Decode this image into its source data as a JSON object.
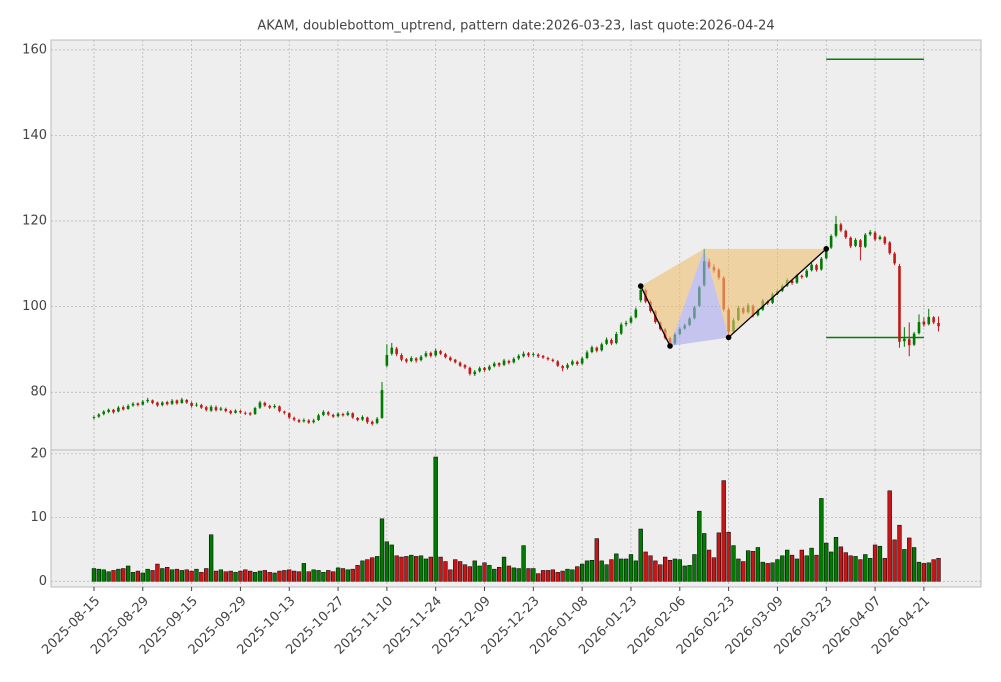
{
  "chart_data": {
    "type": "candlestick",
    "title": "AKAM, doublebottom_uptrend, pattern date:2026-03-23, last quote:2026-04-24",
    "dates": [
      "2025-08-15",
      "2025-08-18",
      "2025-08-19",
      "2025-08-20",
      "2025-08-21",
      "2025-08-22",
      "2025-08-25",
      "2025-08-26",
      "2025-08-27",
      "2025-08-28",
      "2025-08-29",
      "2025-09-02",
      "2025-09-03",
      "2025-09-04",
      "2025-09-05",
      "2025-09-08",
      "2025-09-09",
      "2025-09-10",
      "2025-09-11",
      "2025-09-12",
      "2025-09-15",
      "2025-09-16",
      "2025-09-17",
      "2025-09-18",
      "2025-09-19",
      "2025-09-22",
      "2025-09-23",
      "2025-09-24",
      "2025-09-25",
      "2025-09-26",
      "2025-09-29",
      "2025-09-30",
      "2025-10-01",
      "2025-10-02",
      "2025-10-03",
      "2025-10-06",
      "2025-10-07",
      "2025-10-08",
      "2025-10-09",
      "2025-10-10",
      "2025-10-13",
      "2025-10-14",
      "2025-10-15",
      "2025-10-16",
      "2025-10-17",
      "2025-10-20",
      "2025-10-21",
      "2025-10-22",
      "2025-10-23",
      "2025-10-24",
      "2025-10-27",
      "2025-10-28",
      "2025-10-29",
      "2025-10-30",
      "2025-10-31",
      "2025-11-03",
      "2025-11-04",
      "2025-11-05",
      "2025-11-06",
      "2025-11-07",
      "2025-11-10",
      "2025-11-11",
      "2025-11-12",
      "2025-11-13",
      "2025-11-14",
      "2025-11-17",
      "2025-11-18",
      "2025-11-19",
      "2025-11-20",
      "2025-11-21",
      "2025-11-24",
      "2025-11-25",
      "2025-11-26",
      "2025-11-28",
      "2025-12-01",
      "2025-12-02",
      "2025-12-03",
      "2025-12-04",
      "2025-12-05",
      "2025-12-08",
      "2025-12-09",
      "2025-12-10",
      "2025-12-11",
      "2025-12-12",
      "2025-12-15",
      "2025-12-16",
      "2025-12-17",
      "2025-12-18",
      "2025-12-19",
      "2025-12-22",
      "2025-12-23",
      "2025-12-24",
      "2025-12-26",
      "2025-12-29",
      "2025-12-30",
      "2025-12-31",
      "2026-01-02",
      "2026-01-05",
      "2026-01-06",
      "2026-01-07",
      "2026-01-08",
      "2026-01-09",
      "2026-01-12",
      "2026-01-13",
      "2026-01-14",
      "2026-01-15",
      "2026-01-16",
      "2026-01-20",
      "2026-01-21",
      "2026-01-22",
      "2026-01-23",
      "2026-01-26",
      "2026-01-27",
      "2026-01-28",
      "2026-01-29",
      "2026-01-30",
      "2026-02-02",
      "2026-02-03",
      "2026-02-04",
      "2026-02-05",
      "2026-02-06",
      "2026-02-09",
      "2026-02-10",
      "2026-02-11",
      "2026-02-12",
      "2026-02-13",
      "2026-02-17",
      "2026-02-18",
      "2026-02-19",
      "2026-02-20",
      "2026-02-23",
      "2026-02-24",
      "2026-02-25",
      "2026-02-26",
      "2026-02-27",
      "2026-03-02",
      "2026-03-03",
      "2026-03-04",
      "2026-03-05",
      "2026-03-06",
      "2026-03-09",
      "2026-03-10",
      "2026-03-11",
      "2026-03-12",
      "2026-03-13",
      "2026-03-16",
      "2026-03-17",
      "2026-03-18",
      "2026-03-19",
      "2026-03-20",
      "2026-03-23",
      "2026-03-24",
      "2026-03-25",
      "2026-03-26",
      "2026-03-27",
      "2026-03-30",
      "2026-03-31",
      "2026-04-01",
      "2026-04-02",
      "2026-04-06",
      "2026-04-07",
      "2026-04-08",
      "2026-04-09",
      "2026-04-10",
      "2026-04-13",
      "2026-04-14",
      "2026-04-15",
      "2026-04-16",
      "2026-04-17",
      "2026-04-20",
      "2026-04-21",
      "2026-04-22",
      "2026-04-23",
      "2026-04-24"
    ],
    "ohlc": [
      [
        74.0,
        74.6,
        73.6,
        74.2
      ],
      [
        74.3,
        75.1,
        74.0,
        74.8
      ],
      [
        74.9,
        75.8,
        74.6,
        75.5
      ],
      [
        75.4,
        76.2,
        75.1,
        75.9
      ],
      [
        75.9,
        76.1,
        75.0,
        75.3
      ],
      [
        75.5,
        76.8,
        75.3,
        76.4
      ],
      [
        76.5,
        76.9,
        75.7,
        76.0
      ],
      [
        76.1,
        77.2,
        75.9,
        76.8
      ],
      [
        76.9,
        77.7,
        76.6,
        77.3
      ],
      [
        77.4,
        77.6,
        76.7,
        77.0
      ],
      [
        77.1,
        78.2,
        76.9,
        77.8
      ],
      [
        77.9,
        78.7,
        77.5,
        78.2
      ],
      [
        78.1,
        78.3,
        77.2,
        77.5
      ],
      [
        77.6,
        77.8,
        76.6,
        76.9
      ],
      [
        77.0,
        77.9,
        76.7,
        77.6
      ],
      [
        77.7,
        78.0,
        76.9,
        77.2
      ],
      [
        77.3,
        78.4,
        77.0,
        78.0
      ],
      [
        78.1,
        78.3,
        77.1,
        77.4
      ],
      [
        77.5,
        78.7,
        77.3,
        78.3
      ],
      [
        78.2,
        78.4,
        77.3,
        77.6
      ],
      [
        77.5,
        77.8,
        76.4,
        76.8
      ],
      [
        76.9,
        77.6,
        76.6,
        77.1
      ],
      [
        77.0,
        77.3,
        76.1,
        76.4
      ],
      [
        76.5,
        76.8,
        75.5,
        75.9
      ],
      [
        75.7,
        77.0,
        75.4,
        76.6
      ],
      [
        76.5,
        76.9,
        75.5,
        75.8
      ],
      [
        75.9,
        76.6,
        75.6,
        76.2
      ],
      [
        76.1,
        76.4,
        75.3,
        75.6
      ],
      [
        75.6,
        75.9,
        74.8,
        75.1
      ],
      [
        75.2,
        76.0,
        75.0,
        75.7
      ],
      [
        75.6,
        75.9,
        75.0,
        75.3
      ],
      [
        75.2,
        75.5,
        74.7,
        75.0
      ],
      [
        75.1,
        75.4,
        74.5,
        74.8
      ],
      [
        74.9,
        76.6,
        74.7,
        76.3
      ],
      [
        76.4,
        78.0,
        76.1,
        77.6
      ],
      [
        77.5,
        77.8,
        76.6,
        76.9
      ],
      [
        76.8,
        77.1,
        76.1,
        76.4
      ],
      [
        76.5,
        77.2,
        76.2,
        76.8
      ],
      [
        76.7,
        76.9,
        75.3,
        75.6
      ],
      [
        75.5,
        75.7,
        74.8,
        75.2
      ],
      [
        75.1,
        75.3,
        73.7,
        74.1
      ],
      [
        74.0,
        74.3,
        73.2,
        73.6
      ],
      [
        73.5,
        73.8,
        72.8,
        73.1
      ],
      [
        73.2,
        73.9,
        72.9,
        73.5
      ],
      [
        73.4,
        73.7,
        72.6,
        72.9
      ],
      [
        73.0,
        73.8,
        72.7,
        73.4
      ],
      [
        73.5,
        75.0,
        73.3,
        74.6
      ],
      [
        74.7,
        75.8,
        74.4,
        75.4
      ],
      [
        75.3,
        75.6,
        74.5,
        74.8
      ],
      [
        74.7,
        75.0,
        74.0,
        74.3
      ],
      [
        74.4,
        75.3,
        74.1,
        75.0
      ],
      [
        74.9,
        75.2,
        74.3,
        74.6
      ],
      [
        74.7,
        75.6,
        74.4,
        75.2
      ],
      [
        75.1,
        75.3,
        73.8,
        74.1
      ],
      [
        74.0,
        74.2,
        73.2,
        73.5
      ],
      [
        73.6,
        74.6,
        73.3,
        74.2
      ],
      [
        74.1,
        74.3,
        72.6,
        73.0
      ],
      [
        73.1,
        73.4,
        72.2,
        72.6
      ],
      [
        72.8,
        74.2,
        72.5,
        73.8
      ],
      [
        74.0,
        82.4,
        73.8,
        80.5
      ],
      [
        86.2,
        91.2,
        85.8,
        88.7
      ],
      [
        89.0,
        91.5,
        88.6,
        90.4
      ],
      [
        90.2,
        90.6,
        88.4,
        88.9
      ],
      [
        88.7,
        89.1,
        87.2,
        87.6
      ],
      [
        87.7,
        88.0,
        86.8,
        87.2
      ],
      [
        87.3,
        88.4,
        87.0,
        88.0
      ],
      [
        87.9,
        88.2,
        86.9,
        87.4
      ],
      [
        87.5,
        88.7,
        87.2,
        88.3
      ],
      [
        88.4,
        89.6,
        88.1,
        89.1
      ],
      [
        89.2,
        89.5,
        88.1,
        88.5
      ],
      [
        88.6,
        90.2,
        88.3,
        89.7
      ],
      [
        89.6,
        89.9,
        88.7,
        89.0
      ],
      [
        88.9,
        89.2,
        87.9,
        88.2
      ],
      [
        88.1,
        88.4,
        87.2,
        87.5
      ],
      [
        87.6,
        87.8,
        86.7,
        87.0
      ],
      [
        86.9,
        87.2,
        85.9,
        86.2
      ],
      [
        86.3,
        86.6,
        85.4,
        85.8
      ],
      [
        85.7,
        86.0,
        83.9,
        84.3
      ],
      [
        84.2,
        85.2,
        83.8,
        84.8
      ],
      [
        84.9,
        86.0,
        84.6,
        85.6
      ],
      [
        85.7,
        85.9,
        84.8,
        85.2
      ],
      [
        85.3,
        86.4,
        85.0,
        86.0
      ],
      [
        86.1,
        87.1,
        85.8,
        86.7
      ],
      [
        86.8,
        87.0,
        85.9,
        86.3
      ],
      [
        86.4,
        87.8,
        86.1,
        87.4
      ],
      [
        87.3,
        87.6,
        86.5,
        86.9
      ],
      [
        87.0,
        88.2,
        86.7,
        87.8
      ],
      [
        87.9,
        88.9,
        87.5,
        88.5
      ],
      [
        88.4,
        89.5,
        88.1,
        89.0
      ],
      [
        89.1,
        89.4,
        88.2,
        88.6
      ],
      [
        88.7,
        89.3,
        88.3,
        88.9
      ],
      [
        88.8,
        89.1,
        88.0,
        88.4
      ],
      [
        88.5,
        88.7,
        87.8,
        88.1
      ],
      [
        88.0,
        88.3,
        87.4,
        87.7
      ],
      [
        87.6,
        87.9,
        87.0,
        87.3
      ],
      [
        87.2,
        87.5,
        85.9,
        86.2
      ],
      [
        86.1,
        86.4,
        84.9,
        85.6
      ],
      [
        85.7,
        86.8,
        85.3,
        86.4
      ],
      [
        86.5,
        87.6,
        86.2,
        87.2
      ],
      [
        87.1,
        87.4,
        86.2,
        86.6
      ],
      [
        86.7,
        88.3,
        86.4,
        87.9
      ],
      [
        88.0,
        89.8,
        87.7,
        89.3
      ],
      [
        89.4,
        90.9,
        89.1,
        90.5
      ],
      [
        90.4,
        90.7,
        89.3,
        89.7
      ],
      [
        89.8,
        91.6,
        89.5,
        91.2
      ],
      [
        91.3,
        92.8,
        91.0,
        92.3
      ],
      [
        92.2,
        92.6,
        91.0,
        91.4
      ],
      [
        91.5,
        94.1,
        91.2,
        93.6
      ],
      [
        93.7,
        96.3,
        93.4,
        95.8
      ],
      [
        95.9,
        96.7,
        95.4,
        96.2
      ],
      [
        96.3,
        97.9,
        96.0,
        97.4
      ],
      [
        97.5,
        99.8,
        97.2,
        99.3
      ],
      [
        101.5,
        104.7,
        101.0,
        103.9
      ],
      [
        103.8,
        104.2,
        100.8,
        101.2
      ],
      [
        101.1,
        101.5,
        98.6,
        99.0
      ],
      [
        98.9,
        99.2,
        96.0,
        96.4
      ],
      [
        96.3,
        96.6,
        94.4,
        94.8
      ],
      [
        94.7,
        95.0,
        92.3,
        92.7
      ],
      [
        92.6,
        93.0,
        90.9,
        91.3
      ],
      [
        91.4,
        93.9,
        91.1,
        93.5
      ],
      [
        93.6,
        95.2,
        93.3,
        94.8
      ],
      [
        94.9,
        96.0,
        94.6,
        95.6
      ],
      [
        95.7,
        97.6,
        95.4,
        97.2
      ],
      [
        97.3,
        100.2,
        97.0,
        99.8
      ],
      [
        100.2,
        104.9,
        99.9,
        104.5
      ],
      [
        105.0,
        113.5,
        104.7,
        110.6
      ],
      [
        110.5,
        111.2,
        108.8,
        109.3
      ],
      [
        109.2,
        109.9,
        107.9,
        108.5
      ],
      [
        108.6,
        109.0,
        106.3,
        106.8
      ],
      [
        106.7,
        107.1,
        98.9,
        99.4
      ],
      [
        99.3,
        99.8,
        92.8,
        94.1
      ],
      [
        94.2,
        97.3,
        93.9,
        96.8
      ],
      [
        96.9,
        100.2,
        96.6,
        99.7
      ],
      [
        99.6,
        100.0,
        98.2,
        98.6
      ],
      [
        98.7,
        100.8,
        98.4,
        100.3
      ],
      [
        100.2,
        100.5,
        97.5,
        97.9
      ],
      [
        98.0,
        99.6,
        97.7,
        99.2
      ],
      [
        99.3,
        101.8,
        99.0,
        101.4
      ],
      [
        101.3,
        101.6,
        100.4,
        100.8
      ],
      [
        100.9,
        103.3,
        100.6,
        102.9
      ],
      [
        103.0,
        104.0,
        102.7,
        103.6
      ],
      [
        103.7,
        105.2,
        103.4,
        104.8
      ],
      [
        104.9,
        106.6,
        104.6,
        106.2
      ],
      [
        106.1,
        106.4,
        105.1,
        105.5
      ],
      [
        105.6,
        107.7,
        105.3,
        107.3
      ],
      [
        107.2,
        107.5,
        106.5,
        106.9
      ],
      [
        107.0,
        108.8,
        106.7,
        108.4
      ],
      [
        108.5,
        110.2,
        108.2,
        109.8
      ],
      [
        109.7,
        110.0,
        108.2,
        108.6
      ],
      [
        108.7,
        111.6,
        108.4,
        111.2
      ],
      [
        111.3,
        113.8,
        111.0,
        113.4
      ],
      [
        113.8,
        116.9,
        113.5,
        116.5
      ],
      [
        116.6,
        121.2,
        116.2,
        119.3
      ],
      [
        119.2,
        119.6,
        117.4,
        117.8
      ],
      [
        117.7,
        118.0,
        115.8,
        116.2
      ],
      [
        116.1,
        116.4,
        113.7,
        114.1
      ],
      [
        114.2,
        116.0,
        113.9,
        115.6
      ],
      [
        115.5,
        115.8,
        110.8,
        113.9
      ],
      [
        114.0,
        117.2,
        113.7,
        116.8
      ],
      [
        116.9,
        117.9,
        116.5,
        117.4
      ],
      [
        117.3,
        117.7,
        115.3,
        115.7
      ],
      [
        115.8,
        116.7,
        115.5,
        116.3
      ],
      [
        116.2,
        116.5,
        114.4,
        114.8
      ],
      [
        115.0,
        115.3,
        112.1,
        112.5
      ],
      [
        112.4,
        112.8,
        109.7,
        110.1
      ],
      [
        109.5,
        110.0,
        90.4,
        91.8
      ],
      [
        91.9,
        95.2,
        90.6,
        92.5
      ],
      [
        92.4,
        96.3,
        88.4,
        91.0
      ],
      [
        91.1,
        94.1,
        90.8,
        93.7
      ],
      [
        93.8,
        98.2,
        93.5,
        96.4
      ],
      [
        96.5,
        97.5,
        95.3,
        95.8
      ],
      [
        95.9,
        99.5,
        95.6,
        97.6
      ],
      [
        97.5,
        97.8,
        95.9,
        96.3
      ],
      [
        96.2,
        97.7,
        94.2,
        95.4
      ]
    ],
    "volume": [
      2.0,
      1.9,
      1.8,
      1.5,
      1.7,
      1.9,
      2.0,
      2.4,
      1.4,
      1.6,
      1.3,
      1.9,
      1.7,
      2.7,
      2.0,
      2.2,
      1.8,
      1.9,
      1.7,
      1.8,
      1.6,
      1.9,
      1.4,
      2.0,
      7.3,
      1.6,
      1.8,
      1.5,
      1.6,
      1.4,
      1.6,
      1.8,
      1.6,
      1.4,
      1.6,
      1.7,
      1.4,
      1.3,
      1.6,
      1.7,
      1.8,
      1.6,
      1.5,
      2.8,
      1.5,
      1.8,
      1.7,
      1.4,
      1.7,
      1.5,
      2.1,
      2.0,
      1.8,
      1.9,
      2.5,
      3.2,
      3.4,
      3.7,
      3.9,
      9.8,
      6.2,
      5.7,
      4.0,
      3.8,
      3.9,
      4.1,
      3.9,
      4.0,
      3.5,
      3.8,
      19.5,
      3.8,
      3.1,
      1.8,
      3.4,
      3.1,
      2.6,
      2.3,
      3.2,
      2.4,
      2.9,
      2.5,
      1.9,
      2.2,
      3.8,
      2.4,
      2.1,
      2.0,
      5.6,
      2.0,
      2.0,
      1.2,
      1.7,
      1.7,
      1.8,
      1.4,
      1.6,
      1.9,
      1.8,
      2.3,
      2.7,
      3.2,
      3.3,
      6.7,
      3.2,
      2.6,
      3.4,
      4.3,
      3.5,
      3.5,
      4.2,
      3.2,
      8.2,
      4.6,
      4.0,
      3.2,
      2.6,
      3.8,
      3.3,
      3.5,
      3.4,
      2.4,
      2.5,
      4.2,
      11.0,
      7.5,
      4.9,
      3.7,
      7.6,
      15.8,
      7.7,
      5.6,
      3.5,
      3.1,
      4.8,
      4.7,
      5.3,
      3.0,
      2.8,
      2.9,
      3.4,
      4.0,
      4.9,
      4.1,
      3.5,
      4.9,
      4.0,
      5.2,
      4.1,
      13.0,
      6.0,
      4.6,
      6.9,
      5.4,
      4.5,
      4.0,
      3.9,
      3.4,
      4.2,
      3.6,
      5.7,
      5.5,
      3.6,
      14.2,
      6.5,
      8.8,
      5.0,
      6.8,
      5.3,
      3.0,
      2.8,
      2.9,
      3.4,
      3.6
    ],
    "up_color": "#007a00",
    "down_color": "#c41818",
    "ylim": [
      66.5,
      162.3
    ],
    "yticks": [
      80,
      100,
      120,
      140,
      160
    ],
    "volume_ylim": [
      -0.9,
      20.6
    ],
    "volume_yticks": [
      0,
      10,
      20
    ],
    "xticks": [
      "2025-08-15",
      "2025-08-29",
      "2025-09-15",
      "2025-09-29",
      "2025-10-13",
      "2025-10-27",
      "2025-11-10",
      "2025-11-24",
      "2025-12-09",
      "2025-12-23",
      "2026-01-08",
      "2026-01-23",
      "2026-02-06",
      "2026-02-23",
      "2026-03-09",
      "2026-03-23",
      "2026-04-07",
      "2026-04-21"
    ],
    "grid": true,
    "pattern": {
      "points": [
        {
          "date": "2026-01-27",
          "price": 104.8
        },
        {
          "date": "2026-02-04",
          "price": 90.8
        },
        {
          "date": "2026-02-13",
          "price": 113.5
        },
        {
          "date": "2026-02-23",
          "price": 92.8
        },
        {
          "date": "2026-03-23",
          "price": 113.5
        }
      ],
      "target": 157.8,
      "stop": 92.8,
      "level_end": "2026-04-21",
      "outer_color": "#f0c070",
      "inner_color": "#a8a8f0",
      "level_color": "#008000"
    }
  }
}
